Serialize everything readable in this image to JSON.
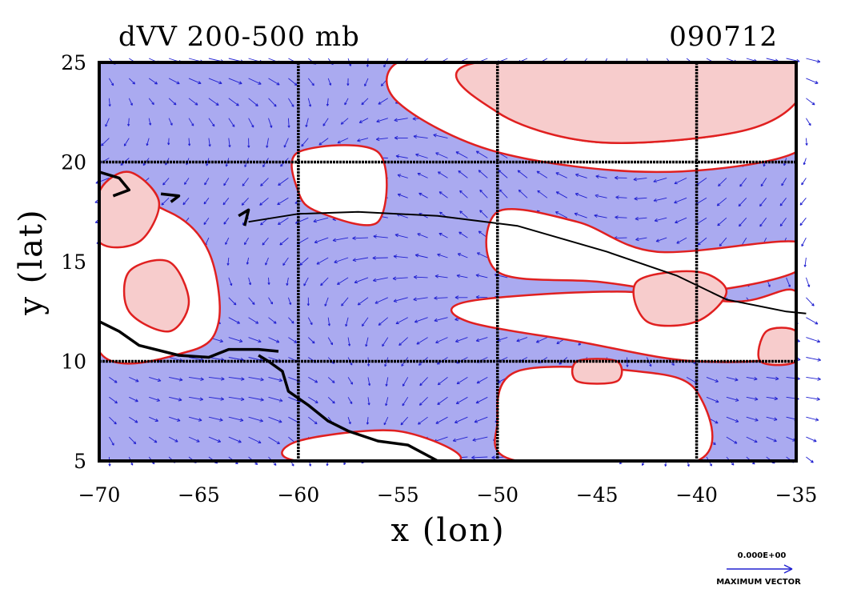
{
  "chart_data": {
    "type": "vector-contour-map",
    "title": "dVV 200-500 mb",
    "date_label": "090712",
    "xlabel": "x (lon)",
    "ylabel": "y (lat)",
    "xlim": [
      -70,
      -35
    ],
    "ylim": [
      5,
      25
    ],
    "xticks": [
      -70,
      -65,
      -60,
      -55,
      -50,
      -45,
      -40,
      -35
    ],
    "yticks": [
      5,
      10,
      15,
      20,
      25
    ],
    "xtick_labels": [
      "−70",
      "−65",
      "−60",
      "−55",
      "−50",
      "−45",
      "−40",
      "−35"
    ],
    "ytick_labels": [
      "5",
      "10",
      "15",
      "20",
      "25"
    ],
    "grid_lon": [
      -60,
      -50,
      -40
    ],
    "grid_lat": [
      10,
      20
    ],
    "fill_colors": {
      "negative": "#aaaaf0",
      "positive": "#f7cccc",
      "zero": "#ffffff",
      "contour": "#e02020",
      "vector": "#2020d0",
      "coast": "#000000"
    },
    "legend": {
      "value_label": "0.000E+00",
      "caption": "MAXIMUM VECTOR",
      "placement": "bottom-right"
    },
    "positive_regions": [
      {
        "name": "ne-band",
        "points": [
          [
            -51,
            25
          ],
          [
            -35,
            25
          ],
          [
            -35,
            23
          ],
          [
            -38,
            21.5
          ],
          [
            -45,
            21
          ],
          [
            -50,
            22.5
          ]
        ]
      },
      {
        "name": "west-lobe",
        "points": [
          [
            -70,
            18.5
          ],
          [
            -68.5,
            19.5
          ],
          [
            -67,
            18
          ],
          [
            -68,
            16
          ],
          [
            -70,
            16
          ]
        ]
      },
      {
        "name": "west-center",
        "points": [
          [
            -68.5,
            14.5
          ],
          [
            -66.5,
            15
          ],
          [
            -65.5,
            13
          ],
          [
            -66.5,
            11.5
          ],
          [
            -68.5,
            12.5
          ]
        ]
      },
      {
        "name": "east-blob",
        "points": [
          [
            -43,
            14
          ],
          [
            -40,
            14.5
          ],
          [
            -38.5,
            13.5
          ],
          [
            -40,
            12
          ],
          [
            -42.5,
            12
          ]
        ]
      },
      {
        "name": "east-small",
        "points": [
          [
            -36.5,
            11.5
          ],
          [
            -35,
            11.5
          ],
          [
            -35,
            10
          ],
          [
            -36.8,
            10
          ]
        ]
      },
      {
        "name": "center-east",
        "points": [
          [
            -46,
            10
          ],
          [
            -44,
            10
          ],
          [
            -44,
            9
          ],
          [
            -46,
            9
          ]
        ]
      }
    ],
    "zero_regions": [
      {
        "name": "white-north",
        "points": [
          [
            -60,
            20.5
          ],
          [
            -56,
            20.5
          ],
          [
            -56,
            17
          ],
          [
            -59,
            17.5
          ],
          [
            -60,
            18.5
          ]
        ]
      },
      {
        "name": "white-west",
        "points": [
          [
            -70,
            18
          ],
          [
            -66.5,
            17.5
          ],
          [
            -64.5,
            15.5
          ],
          [
            -64,
            12
          ],
          [
            -65.5,
            10.5
          ],
          [
            -70,
            10.5
          ]
        ]
      },
      {
        "name": "white-east1",
        "points": [
          [
            -50,
            17.5
          ],
          [
            -46,
            17
          ],
          [
            -42,
            15.5
          ],
          [
            -35,
            16
          ],
          [
            -35,
            14.5
          ],
          [
            -40,
            13.5
          ],
          [
            -45,
            14
          ],
          [
            -50,
            14.5
          ]
        ]
      },
      {
        "name": "white-east2",
        "points": [
          [
            -51.5,
            13
          ],
          [
            -44,
            13.5
          ],
          [
            -38,
            13
          ],
          [
            -35,
            13.5
          ],
          [
            -35,
            10.5
          ],
          [
            -40,
            10
          ],
          [
            -46,
            11
          ],
          [
            -51.5,
            12
          ]
        ]
      },
      {
        "name": "white-se",
        "points": [
          [
            -49,
            9.5
          ],
          [
            -43,
            9.5
          ],
          [
            -40,
            8.5
          ],
          [
            -40,
            5
          ],
          [
            -49,
            5
          ],
          [
            -50,
            7
          ]
        ]
      },
      {
        "name": "white-ne",
        "points": [
          [
            -55,
            25
          ],
          [
            -51,
            25
          ],
          [
            -50,
            22.5
          ],
          [
            -45,
            21
          ],
          [
            -38,
            21.5
          ],
          [
            -35,
            23
          ],
          [
            -35,
            20.5
          ],
          [
            -42,
            19.5
          ],
          [
            -50,
            20.5
          ],
          [
            -55,
            23
          ]
        ]
      },
      {
        "name": "white-south",
        "points": [
          [
            -60,
            6
          ],
          [
            -55,
            6.5
          ],
          [
            -52,
            5
          ],
          [
            -60,
            5
          ]
        ]
      }
    ],
    "coastlines": [
      [
        [
          -70,
          12
        ],
        [
          -69,
          11.5
        ],
        [
          -68,
          10.8
        ],
        [
          -66,
          10.3
        ],
        [
          -64.5,
          10.2
        ],
        [
          -63.5,
          10.6
        ],
        [
          -62,
          10.6
        ],
        [
          -61,
          10.5
        ]
      ],
      [
        [
          -62,
          10.3
        ],
        [
          -61.5,
          10
        ],
        [
          -60.8,
          9.5
        ],
        [
          -60.5,
          8.5
        ],
        [
          -59.5,
          7.8
        ],
        [
          -58.5,
          7
        ],
        [
          -57.5,
          6.5
        ],
        [
          -56,
          6
        ],
        [
          -54.5,
          5.8
        ],
        [
          -53,
          5
        ]
      ],
      [
        [
          -70,
          19.5
        ],
        [
          -69,
          19.2
        ],
        [
          -68.5,
          18.6
        ],
        [
          -69.3,
          18.3
        ]
      ],
      [
        [
          -66.9,
          18.4
        ],
        [
          -66,
          18.3
        ],
        [
          -66.4,
          18
        ]
      ],
      [
        [
          -63,
          17.3
        ],
        [
          -62.5,
          17.6
        ],
        [
          -62.7,
          16.8
        ]
      ]
    ],
    "trough_line": [
      [
        -62.5,
        17
      ],
      [
        -60,
        17.4
      ],
      [
        -57,
        17.5
      ],
      [
        -53,
        17.3
      ],
      [
        -49,
        16.8
      ],
      [
        -44.5,
        15.5
      ],
      [
        -41,
        14.3
      ],
      [
        -38.5,
        13.1
      ],
      [
        -35.5,
        12.5
      ],
      [
        -34.5,
        12.4
      ]
    ]
  }
}
